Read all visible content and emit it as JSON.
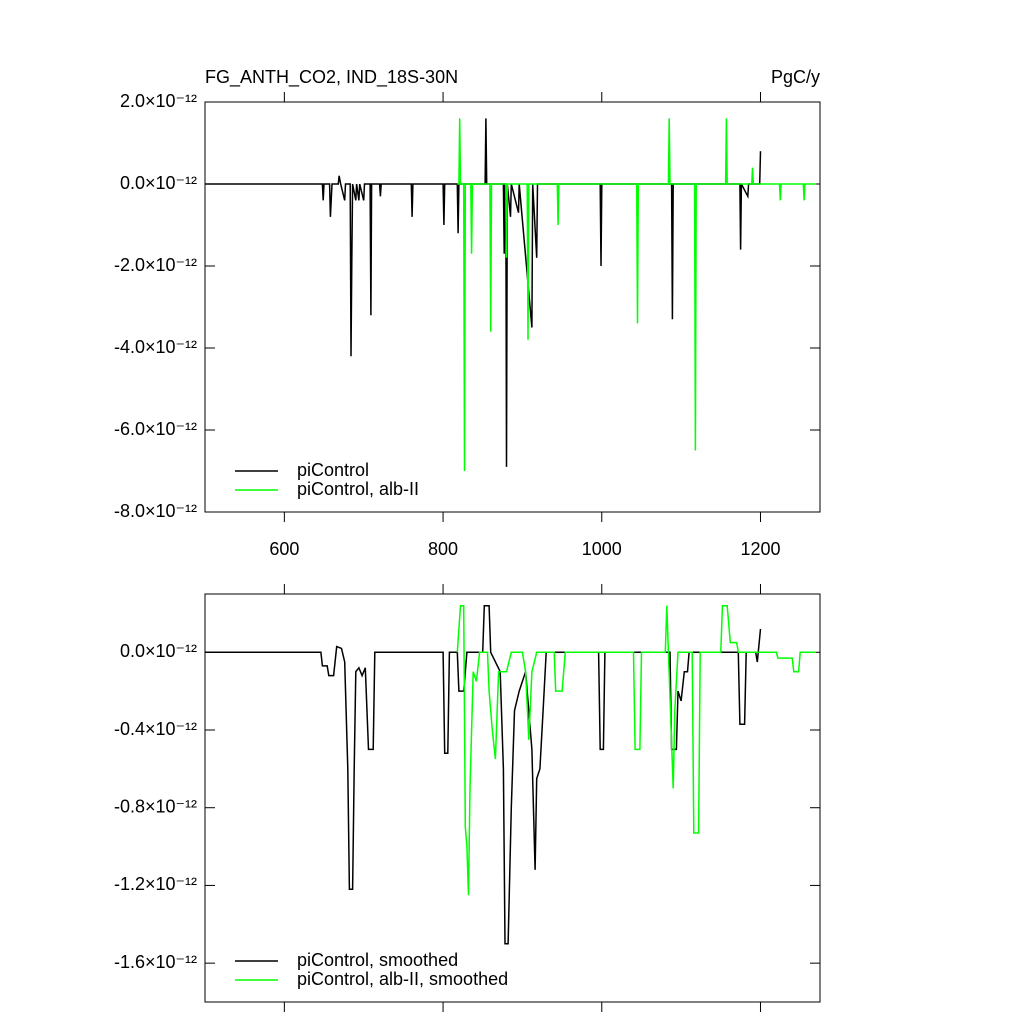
{
  "chart_data": [
    {
      "type": "line",
      "title": "FG_ANTH_CO2, IND_18S-30N",
      "units": "PgC/y",
      "xlim": [
        500,
        1275
      ],
      "xticks": [
        600,
        800,
        1000,
        1200
      ],
      "show_xtick_labels": true,
      "ylim": [
        -8e-12,
        2e-12
      ],
      "yticks": [
        {
          "value": -8e-12,
          "label": "-8.0×10⁻¹²"
        },
        {
          "value": -6e-12,
          "label": "-6.0×10⁻¹²"
        },
        {
          "value": -4e-12,
          "label": "-4.0×10⁻¹²"
        },
        {
          "value": -2e-12,
          "label": "-2.0×10⁻¹²"
        },
        {
          "value": 0,
          "label": "0.0×10⁻¹²"
        },
        {
          "value": 2e-12,
          "label": "2.0×10⁻¹²"
        }
      ],
      "legend": "lower left",
      "series": [
        {
          "name": "piControl",
          "color": "#000000",
          "x": [
            500,
            648,
            649,
            650,
            657,
            658,
            660,
            668,
            669,
            671,
            676,
            677,
            683,
            684,
            685,
            686,
            690,
            691,
            694,
            695,
            700,
            701,
            708,
            709,
            710,
            720,
            721,
            722,
            760,
            761,
            762,
            800,
            801,
            802,
            818,
            819,
            820,
            853,
            854,
            855,
            876,
            877,
            878,
            879,
            880,
            881,
            885,
            886,
            895,
            896,
            912,
            913,
            918,
            919,
            998,
            999,
            1000,
            1088,
            1089,
            1090,
            1174,
            1175,
            1176,
            1184,
            1185,
            1199,
            1200
          ],
          "values": [
            0,
            0,
            -4e-13,
            0,
            0,
            -8e-13,
            0,
            0,
            2e-13,
            0,
            -4e-13,
            0,
            0,
            -4.2e-12,
            -1.9e-12,
            0,
            -4e-13,
            0,
            -4e-13,
            0,
            -4e-13,
            0,
            0,
            -3.2e-12,
            0,
            0,
            -3e-13,
            0,
            0,
            -8e-13,
            0,
            0,
            -1e-12,
            0,
            0,
            -1.2e-12,
            0,
            0,
            1.6e-12,
            0,
            0,
            -1.7e-12,
            0,
            0,
            -6.9e-12,
            0,
            -8e-13,
            0,
            -7e-13,
            0,
            -3.5e-12,
            0,
            -1.8e-12,
            0,
            0,
            -2e-12,
            0,
            0,
            -3.3e-12,
            0,
            0,
            -1.6e-12,
            0,
            -3e-13,
            0,
            0,
            8e-13
          ]
        },
        {
          "name": "piControl, alb-II",
          "color": "#00ff00",
          "x": [
            818,
            820,
            821,
            822,
            826,
            827,
            828,
            835,
            836,
            837,
            859,
            860,
            861,
            879,
            880,
            881,
            906,
            907,
            908,
            944,
            945,
            946,
            1044,
            1045,
            1046,
            1084,
            1085,
            1086,
            1117,
            1118,
            1119,
            1156,
            1157,
            1158,
            1189,
            1190,
            1191,
            1224,
            1225,
            1226,
            1254,
            1255,
            1256,
            1270
          ],
          "values": [
            0,
            0,
            1.6e-12,
            0,
            0,
            -7e-12,
            0,
            0,
            -1.7e-12,
            0,
            0,
            -3.6e-12,
            0,
            0,
            -1.8e-12,
            0,
            0,
            -3.8e-12,
            0,
            0,
            -1e-12,
            0,
            0,
            -3.4e-12,
            0,
            0,
            1.6e-12,
            0,
            0,
            -6.5e-12,
            0,
            0,
            1.6e-12,
            0,
            0,
            4e-13,
            0,
            0,
            -4e-13,
            0,
            0,
            -4e-13,
            0,
            0
          ]
        }
      ]
    },
    {
      "type": "line",
      "xlim": [
        500,
        1275
      ],
      "xticks": [
        600,
        800,
        1000,
        1200
      ],
      "show_xtick_labels": false,
      "ylim": [
        -1.8e-12,
        3e-13
      ],
      "yticks": [
        {
          "value": -1.6e-12,
          "label": "-1.6×10⁻¹²"
        },
        {
          "value": -1.2e-12,
          "label": "-1.2×10⁻¹²"
        },
        {
          "value": -8e-13,
          "label": "-0.8×10⁻¹²"
        },
        {
          "value": -4e-13,
          "label": "-0.4×10⁻¹²"
        },
        {
          "value": 0,
          "label": "0.0×10⁻¹²"
        }
      ],
      "legend": "lower left",
      "series": [
        {
          "name": "piControl, smoothed",
          "color": "#000000",
          "x": [
            500,
            646,
            648,
            654,
            656,
            662,
            666,
            672,
            676,
            680,
            682,
            686,
            688,
            690,
            694,
            698,
            702,
            706,
            712,
            714,
            800,
            802,
            806,
            808,
            818,
            820,
            826,
            830,
            850,
            852,
            858,
            860,
            872,
            876,
            878,
            882,
            886,
            890,
            896,
            904,
            912,
            916,
            918,
            922,
            926,
            930,
            996,
            998,
            1002,
            1004,
            1086,
            1088,
            1094,
            1096,
            1100,
            1104,
            1108,
            1110,
            1172,
            1174,
            1180,
            1182,
            1194,
            1196,
            1200
          ],
          "values": [
            0,
            0,
            -7e-14,
            -7e-14,
            -1.2e-13,
            -1.2e-13,
            3e-14,
            2e-14,
            -5e-14,
            -6e-13,
            -1.22e-12,
            -1.22e-12,
            -6e-13,
            -1e-13,
            -8e-14,
            -1.2e-13,
            -8e-14,
            -5e-13,
            -5e-13,
            0,
            0,
            -5.2e-13,
            -5.2e-13,
            0,
            0,
            -2e-13,
            -2e-13,
            0,
            0,
            2.4e-13,
            2.4e-13,
            0,
            -1e-13,
            -6e-13,
            -1.5e-12,
            -1.5e-12,
            -8e-13,
            -3e-13,
            -2e-13,
            -1e-13,
            -5e-13,
            -1.12e-12,
            -6.5e-13,
            -6e-13,
            -3e-13,
            0,
            0,
            -5e-13,
            -5e-13,
            0,
            0,
            -5e-13,
            -5e-13,
            -2e-13,
            -2.5e-13,
            -1e-13,
            -1e-13,
            0,
            0,
            -3.7e-13,
            -3.7e-13,
            0,
            0,
            -5e-14,
            1.2e-13
          ]
        },
        {
          "name": "piControl, alb-II, smoothed",
          "color": "#00ff00",
          "x": [
            818,
            822,
            826,
            828,
            830,
            832,
            834,
            838,
            842,
            846,
            856,
            858,
            862,
            866,
            870,
            874,
            880,
            886,
            900,
            904,
            908,
            912,
            918,
            940,
            942,
            950,
            954,
            1040,
            1042,
            1048,
            1050,
            1080,
            1082,
            1090,
            1092,
            1096,
            1114,
            1116,
            1122,
            1124,
            1150,
            1152,
            1158,
            1162,
            1170,
            1172,
            1220,
            1222,
            1240,
            1242,
            1248,
            1250,
            1270
          ],
          "values": [
            0,
            2.4e-13,
            2.4e-13,
            -9e-13,
            -1e-12,
            -1.25e-12,
            -7e-13,
            -1e-13,
            -1.5e-13,
            0,
            0,
            -2e-13,
            -4e-13,
            -5.5e-13,
            -1e-13,
            -1e-13,
            -1e-13,
            0,
            0,
            -1e-13,
            -4.5e-13,
            -1e-13,
            0,
            0,
            -2e-13,
            -2e-13,
            0,
            0,
            -5e-13,
            -5e-13,
            0,
            0,
            2.4e-13,
            -7e-13,
            -3e-13,
            0,
            0,
            -9.3e-13,
            -9.3e-13,
            0,
            0,
            2.4e-13,
            2.4e-13,
            5e-14,
            5e-14,
            0,
            0,
            -3e-14,
            -3e-14,
            -1e-13,
            -1e-13,
            0,
            0
          ]
        }
      ]
    }
  ]
}
